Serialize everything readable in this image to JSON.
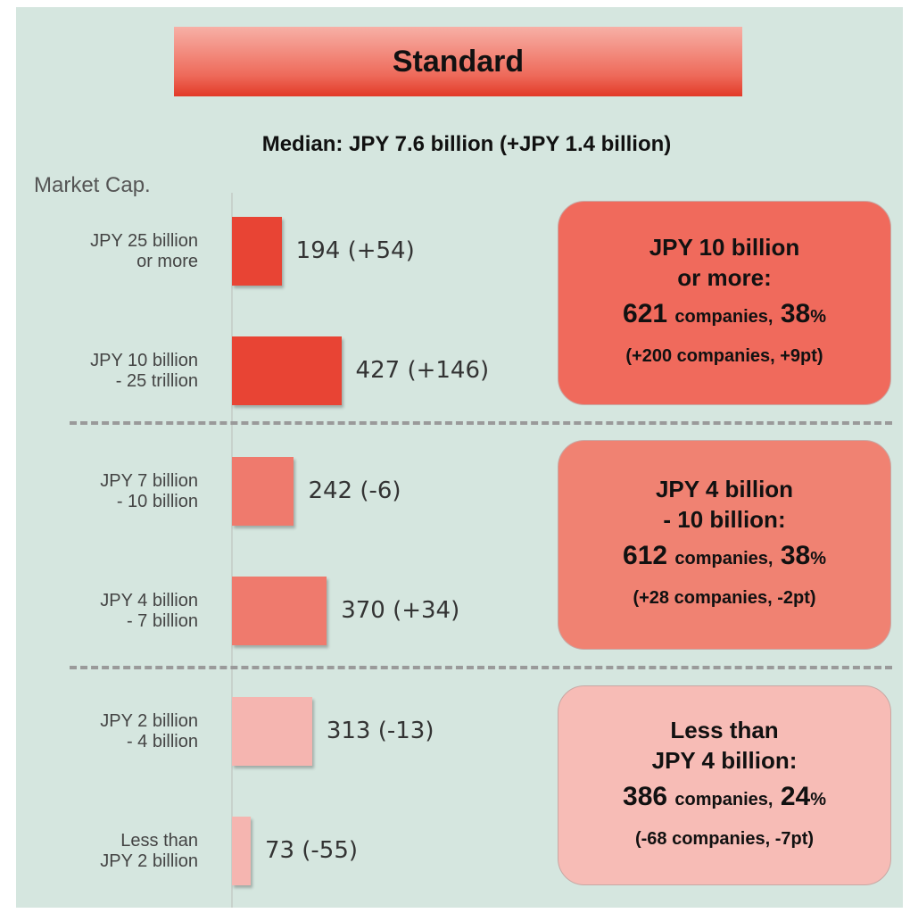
{
  "chart_data": {
    "type": "bar",
    "title": "Standard",
    "subtitle": "Median: JPY 7.6 billion (+JPY 1.4 billion)",
    "axis_label": "Market Cap.",
    "categories": [
      "JPY 25 billion\nor more",
      "JPY 10 billion\n- 25 trillion",
      "JPY 7 billion\n- 10 billion",
      "JPY 4 billion\n- 7 billion",
      "JPY 2 billion\n- 4 billion",
      "Less than\nJPY 2 billion"
    ],
    "values": [
      194,
      427,
      242,
      370,
      313,
      73
    ],
    "value_labels": [
      "194 (+54)",
      "427 (+146)",
      "242 (-6)",
      "370 (+34)",
      "313 (-13)",
      "73 (-55)"
    ],
    "colors": [
      "#e84434",
      "#e84434",
      "#ef7a6d",
      "#ef7a6d",
      "#f5b5b0",
      "#f5b5b0"
    ],
    "groups": [
      {
        "title": "JPY 10 billion\nor more:",
        "count": 621,
        "count_unit": "companies,",
        "share": 38,
        "share_unit": "%",
        "change": "(+200 companies, +9pt)",
        "color": "#f06a5c"
      },
      {
        "title": "JPY 4 billion\n- 10 billion:",
        "count": 612,
        "count_unit": "companies,",
        "share": 38,
        "share_unit": "%",
        "change": "(+28 companies, -2pt)",
        "color": "#f08272"
      },
      {
        "title": "Less than\nJPY 4 billion:",
        "count": 386,
        "count_unit": "companies,",
        "share": 24,
        "share_unit": "%",
        "change": "(-68 companies, -7pt)",
        "color": "#f7bcb6"
      }
    ]
  }
}
